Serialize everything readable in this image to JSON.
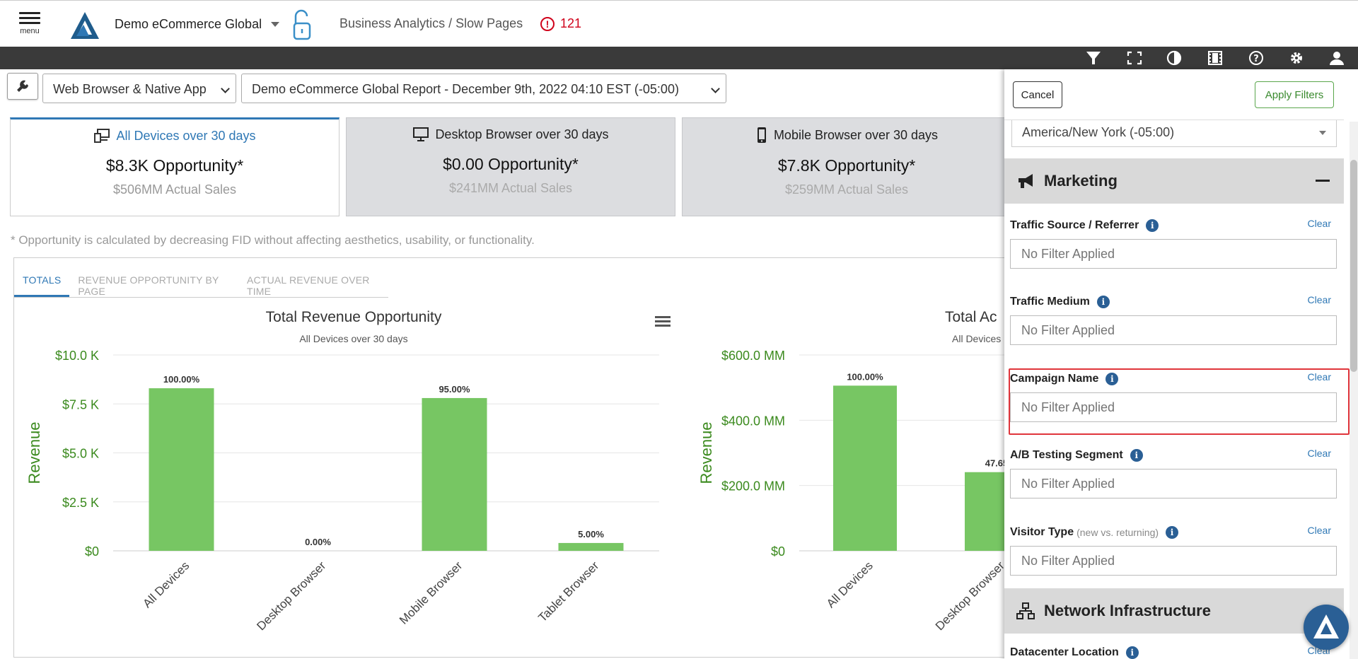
{
  "header": {
    "menu_label": "menu",
    "org_name": "Demo eCommerce Global",
    "breadcrumb": "Business Analytics / Slow Pages",
    "alert_count": "121"
  },
  "toolbar": {
    "icons": [
      "filter-icon",
      "fullscreen-icon",
      "contrast-icon",
      "film-icon",
      "help-icon",
      "gear-icon",
      "user-icon"
    ]
  },
  "controls": {
    "platform_select": "Web Browser & Native App",
    "report_select": "Demo eCommerce Global Report - December 9th, 2022 04:10 EST (-05:00)"
  },
  "cards": [
    {
      "title": "All Devices over 30 days",
      "opportunity": "$8.3K Opportunity*",
      "sales": "$506MM Actual Sales"
    },
    {
      "title": "Desktop Browser over 30 days",
      "opportunity": "$0.00 Opportunity*",
      "sales": "$241MM Actual Sales"
    },
    {
      "title": "Mobile Browser over 30 days",
      "opportunity": "$7.8K Opportunity*",
      "sales": "$259MM Actual Sales"
    }
  ],
  "footnote": "* Opportunity is calculated by decreasing FID without affecting aesthetics, usability, or functionality.",
  "tabs": [
    "TOTALS",
    "REVENUE OPPORTUNITY BY PAGE",
    "ACTUAL REVENUE OVER TIME"
  ],
  "chart_data": [
    {
      "type": "bar",
      "title": "Total Revenue Opportunity",
      "subtitle": "All Devices over 30 days",
      "ylabel": "Revenue",
      "categories": [
        "All Devices",
        "Desktop Browser",
        "Mobile Browser",
        "Tablet Browser"
      ],
      "values": [
        8300,
        0,
        7800,
        400
      ],
      "data_labels": [
        "100.00%",
        "0.00%",
        "95.00%",
        "5.00%"
      ],
      "ylim": [
        0,
        10000
      ],
      "yticks": [
        0,
        2500,
        5000,
        7500,
        10000
      ],
      "ytick_labels": [
        "$0",
        "$2.5 K",
        "$5.0 K",
        "$7.5 K",
        "$10.0 K"
      ],
      "bar_color": "#77c663",
      "axis_color": "#3b8a1e"
    },
    {
      "type": "bar",
      "title": "Total Ac",
      "subtitle": "All Devices",
      "ylabel": "Revenue",
      "categories": [
        "All Devices",
        "Desktop Browser"
      ],
      "values": [
        506,
        241
      ],
      "data_labels": [
        "100.00%",
        "47.65"
      ],
      "ylim": [
        0,
        600
      ],
      "yticks": [
        0,
        200,
        400,
        600
      ],
      "ytick_labels": [
        "$0",
        "$200.0 MM",
        "$400.0 MM",
        "$600.0 MM"
      ],
      "bar_color": "#77c663",
      "axis_color": "#3b8a1e"
    }
  ],
  "drawer": {
    "cancel_label": "Cancel",
    "apply_label": "Apply Filters",
    "timezone": "America/New York (-05:00)",
    "marketing_title": "Marketing",
    "network_title": "Network Infrastructure",
    "clear_label": "Clear",
    "placeholder": "No Filter Applied",
    "filters": [
      {
        "label": "Traffic Source / Referrer"
      },
      {
        "label": "Traffic Medium"
      },
      {
        "label": "Campaign Name"
      },
      {
        "label": "A/B Testing Segment"
      },
      {
        "label": "Visitor Type",
        "hint": "(new vs. returning)"
      },
      {
        "label": "Datacenter Location"
      }
    ]
  },
  "colors": {
    "accent": "#2f78b5",
    "toolbar": "#3a3a3a",
    "alert": "#d0021b",
    "highlight": "#e0353b"
  }
}
